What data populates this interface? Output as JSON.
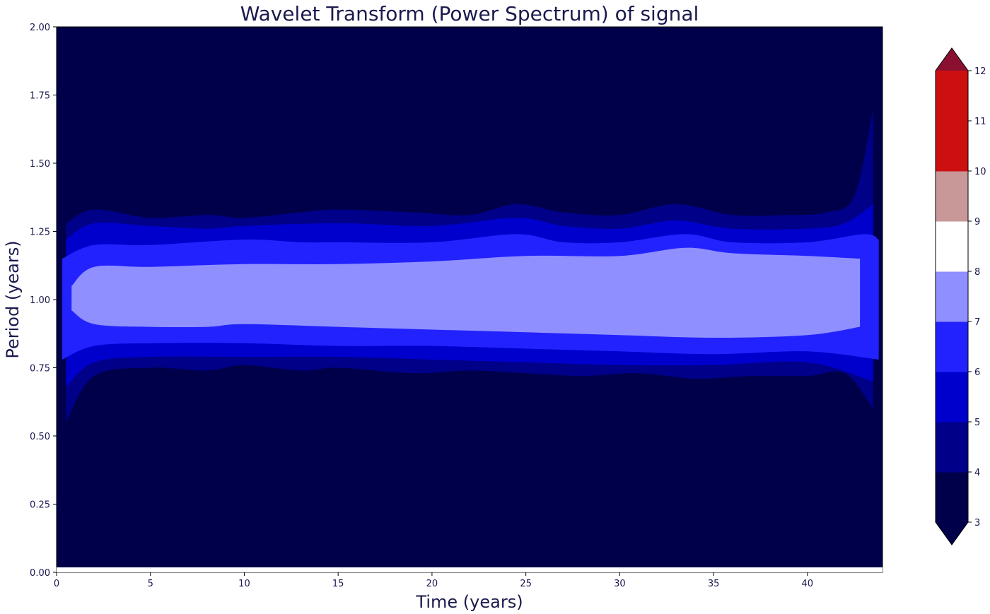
{
  "chart_data": {
    "type": "heatmap",
    "title": "Wavelet Transform (Power Spectrum) of signal",
    "xlabel": "Time (years)",
    "ylabel": "Period (years)",
    "xlim": [
      0,
      44
    ],
    "ylim": [
      0,
      2
    ],
    "x_ticks": [
      0,
      5,
      10,
      15,
      20,
      25,
      30,
      35,
      40
    ],
    "x_tick_labels": [
      "0",
      "5",
      "10",
      "15",
      "20",
      "25",
      "30",
      "35",
      "40"
    ],
    "y_ticks": [
      0,
      0.25,
      0.5,
      0.75,
      1.0,
      1.25,
      1.5,
      1.75,
      2.0
    ],
    "y_tick_labels": [
      "0.00",
      "0.25",
      "0.50",
      "0.75",
      "1.00",
      "1.25",
      "1.50",
      "1.75",
      "2.00"
    ],
    "colorbar": {
      "levels": [
        3,
        4,
        5,
        6,
        7,
        8,
        9,
        10,
        11,
        12
      ],
      "tick_labels": [
        "3",
        "4",
        "5",
        "6",
        "7",
        "8",
        "9",
        "10",
        "11",
        "12"
      ],
      "colors": [
        "#00004a",
        "#000088",
        "#0000cc",
        "#2222ff",
        "#8f8fff",
        "#ffffff",
        "#c89898",
        "#cc1010",
        "#cc1010"
      ],
      "under_color": "#00004a",
      "over_color": "#8a1030",
      "extend": "both"
    },
    "contours": [
      {
        "level": 4,
        "period_center": 1.0,
        "upper_boundary": {
          "x": [
            0.5,
            2,
            5,
            8,
            10,
            13,
            15,
            19,
            22,
            24.5,
            27,
            30,
            33,
            36,
            39,
            41,
            42.5,
            43.5
          ],
          "y": [
            1.28,
            1.33,
            1.3,
            1.31,
            1.3,
            1.32,
            1.33,
            1.32,
            1.31,
            1.35,
            1.32,
            1.31,
            1.35,
            1.31,
            1.31,
            1.32,
            1.38,
            1.7
          ]
        },
        "lower_boundary": {
          "x": [
            0.5,
            2,
            5,
            8,
            10,
            13,
            15,
            19,
            22,
            25,
            28,
            31,
            34,
            37,
            40,
            42,
            43.5
          ],
          "y": [
            0.55,
            0.72,
            0.75,
            0.74,
            0.76,
            0.74,
            0.75,
            0.73,
            0.74,
            0.73,
            0.72,
            0.73,
            0.71,
            0.72,
            0.72,
            0.73,
            0.6
          ]
        }
      },
      {
        "level": 5,
        "upper_boundary": {
          "x": [
            0.5,
            2,
            5,
            8,
            10,
            15,
            20,
            24.5,
            27,
            30,
            33,
            36,
            40,
            42,
            43.5
          ],
          "y": [
            1.22,
            1.28,
            1.27,
            1.26,
            1.27,
            1.28,
            1.27,
            1.3,
            1.27,
            1.26,
            1.29,
            1.26,
            1.26,
            1.28,
            1.35
          ]
        },
        "lower_boundary": {
          "x": [
            0.5,
            2,
            5,
            10,
            15,
            20,
            25,
            30,
            35,
            40,
            43.5
          ],
          "y": [
            0.68,
            0.77,
            0.79,
            0.79,
            0.79,
            0.78,
            0.77,
            0.76,
            0.76,
            0.77,
            0.7
          ]
        }
      },
      {
        "level": 6,
        "upper_boundary": {
          "x": [
            0.3,
            2,
            5,
            10,
            13,
            15,
            20,
            24.5,
            27,
            30,
            33.5,
            36,
            40,
            43,
            43.8
          ],
          "y": [
            1.15,
            1.2,
            1.2,
            1.22,
            1.21,
            1.21,
            1.21,
            1.24,
            1.21,
            1.21,
            1.24,
            1.21,
            1.21,
            1.24,
            1.22
          ]
        },
        "lower_boundary": {
          "x": [
            0.3,
            2,
            5,
            10,
            15,
            20,
            25,
            30,
            35,
            40,
            43.8
          ],
          "y": [
            0.78,
            0.83,
            0.84,
            0.84,
            0.83,
            0.83,
            0.82,
            0.81,
            0.8,
            0.81,
            0.78
          ]
        }
      },
      {
        "level": 6.5,
        "upper_boundary": {
          "x": [
            0.8,
            2,
            5,
            10,
            15,
            20,
            25,
            30,
            33.5,
            36,
            40,
            42.8
          ],
          "y": [
            1.05,
            1.12,
            1.12,
            1.13,
            1.13,
            1.14,
            1.16,
            1.16,
            1.19,
            1.17,
            1.16,
            1.15
          ]
        },
        "lower_boundary": {
          "x": [
            0.8,
            2,
            5,
            8,
            10,
            15,
            20,
            25,
            30,
            35,
            40,
            42.8
          ],
          "y": [
            0.96,
            0.91,
            0.9,
            0.9,
            0.91,
            0.9,
            0.89,
            0.88,
            0.87,
            0.86,
            0.87,
            0.9
          ]
        }
      }
    ],
    "peak": {
      "level": 7,
      "time": 33.5,
      "period": 1.03
    }
  }
}
